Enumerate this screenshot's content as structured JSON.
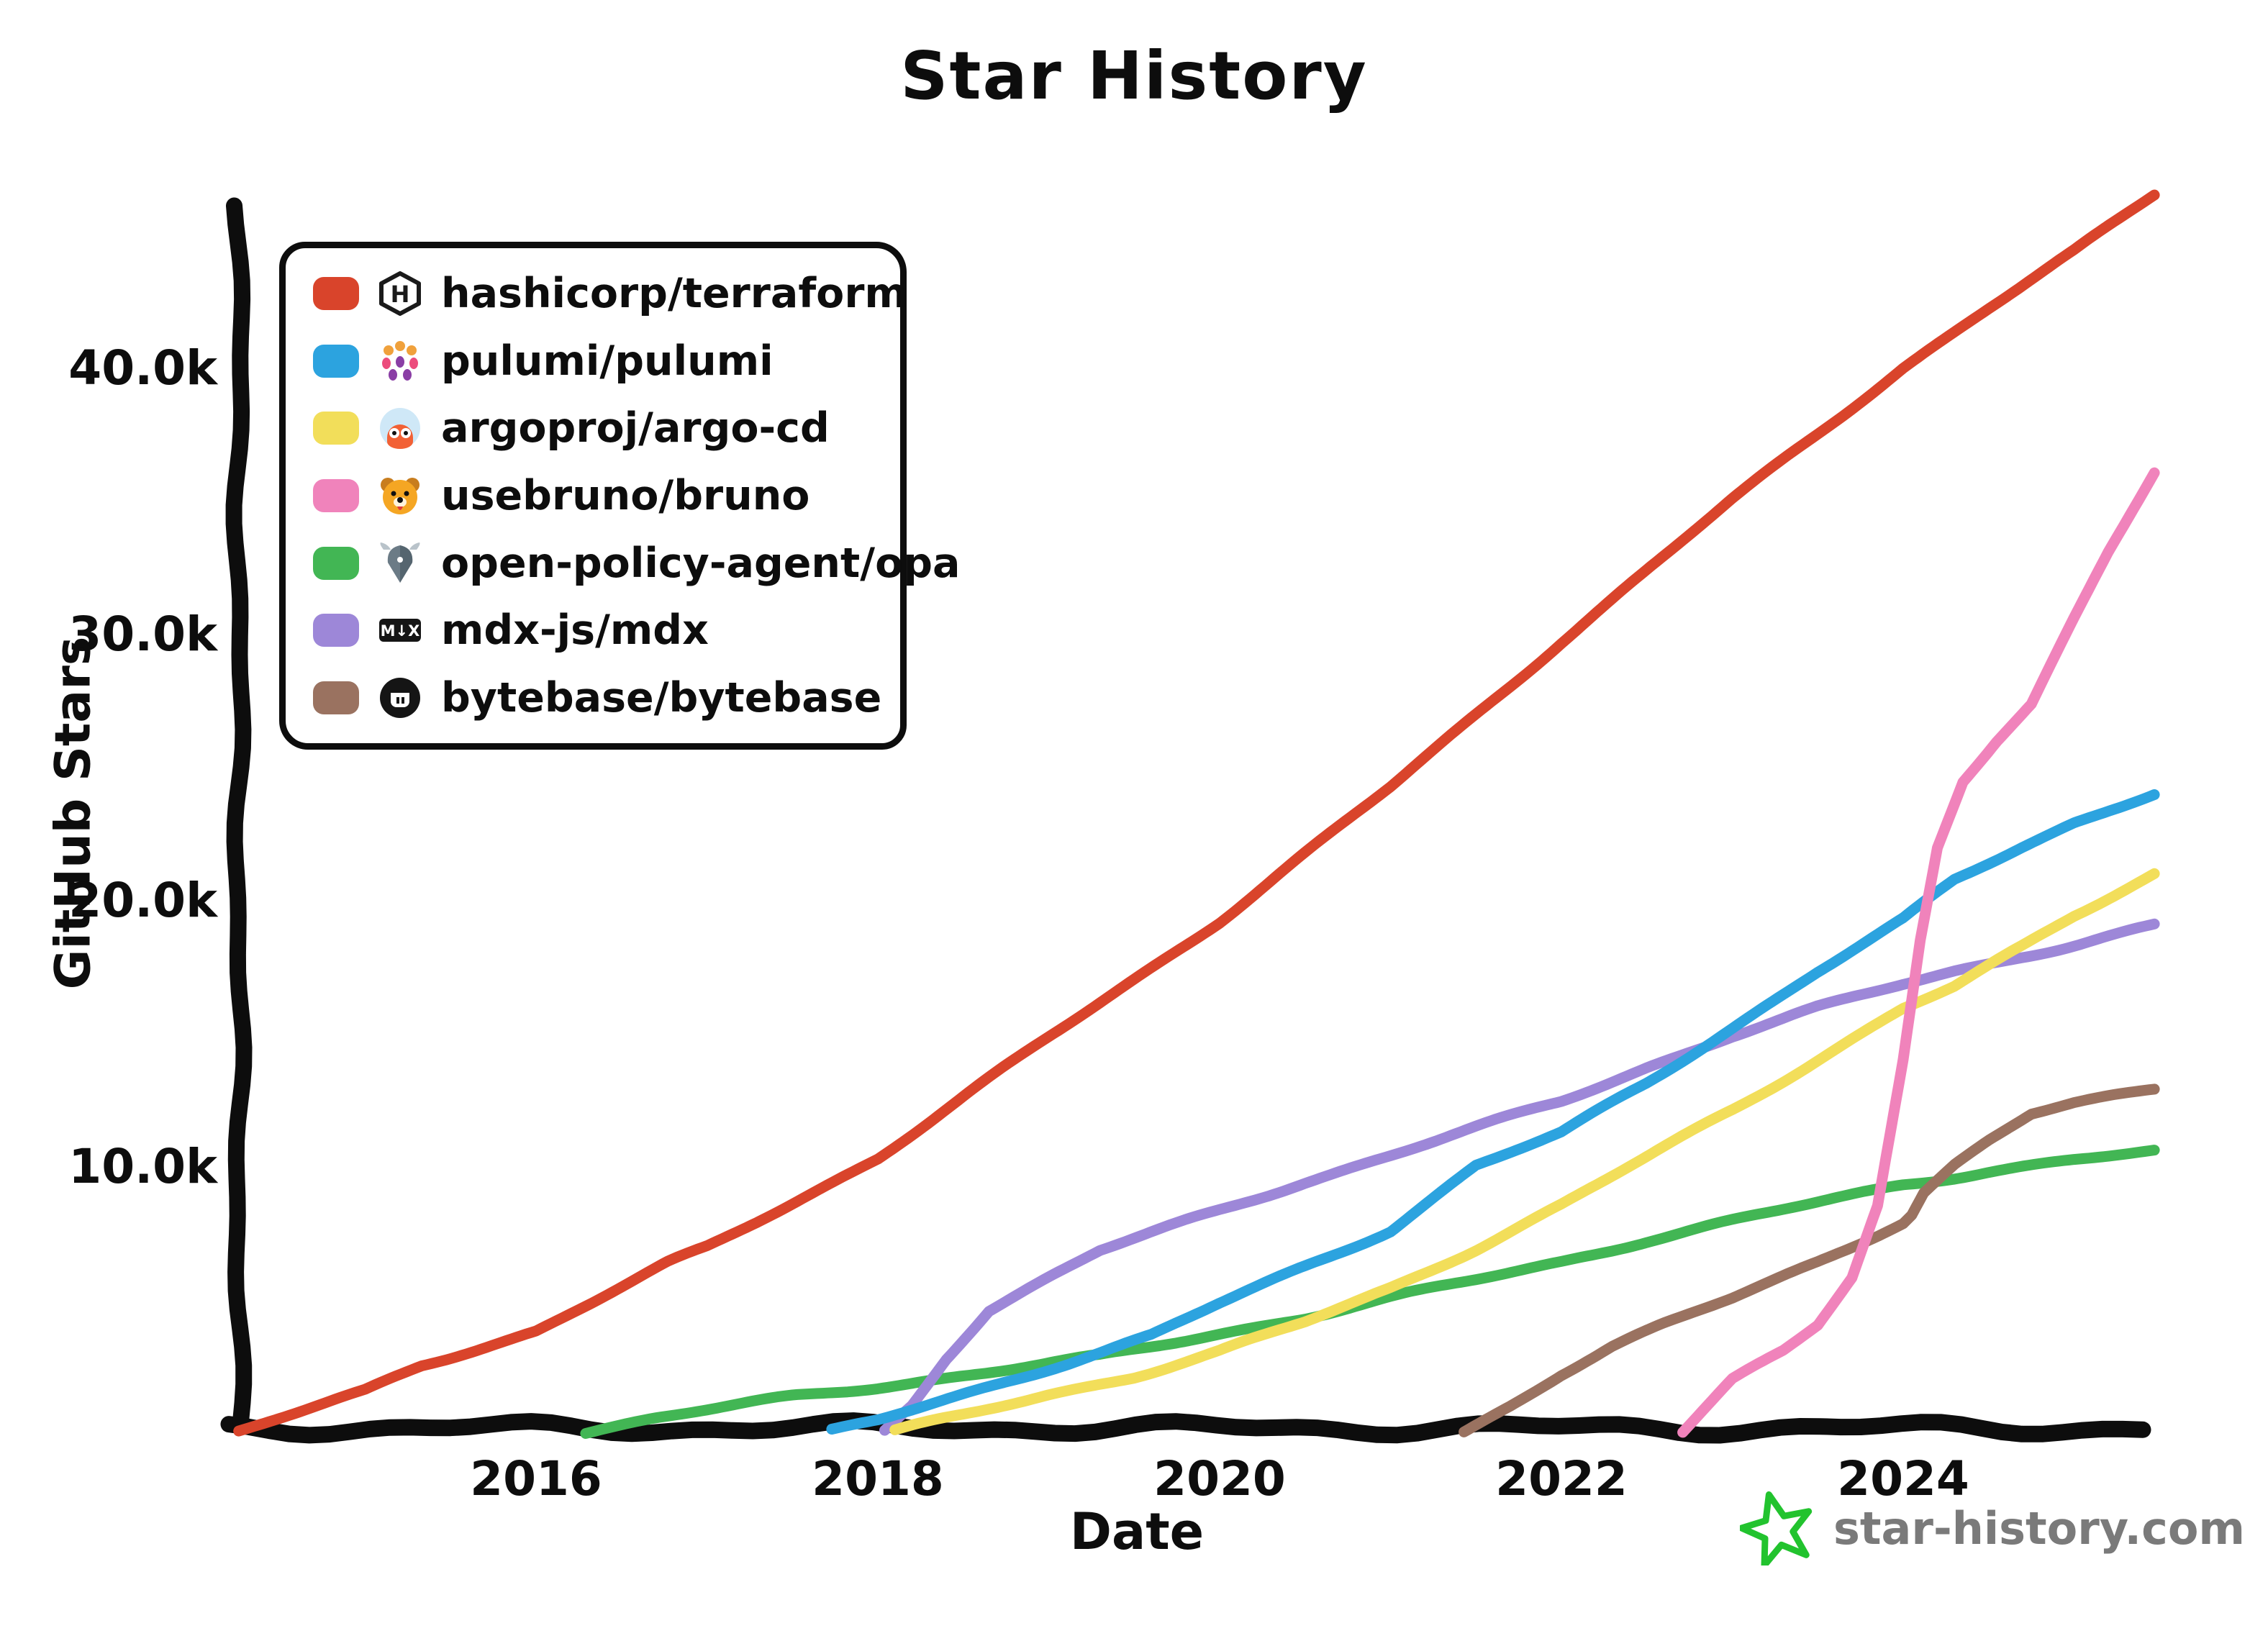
{
  "title": "Star History",
  "axes": {
    "x_label": "Date",
    "y_label": "GitHub Stars",
    "x_ticks": [
      {
        "label": "2016",
        "year": 2016
      },
      {
        "label": "2018",
        "year": 2018
      },
      {
        "label": "2020",
        "year": 2020
      },
      {
        "label": "2022",
        "year": 2022
      },
      {
        "label": "2024",
        "year": 2024
      }
    ],
    "y_ticks": [
      {
        "label": "10.0k",
        "value": 10
      },
      {
        "label": "20.0k",
        "value": 20
      },
      {
        "label": "30.0k",
        "value": 30
      },
      {
        "label": "40.0k",
        "value": 40
      }
    ]
  },
  "legend": {
    "items": [
      {
        "label": "hashicorp/terraform",
        "color": "#D9442B",
        "icon": "terraform-icon"
      },
      {
        "label": "pulumi/pulumi",
        "color": "#2CA3DF",
        "icon": "pulumi-icon"
      },
      {
        "label": "argoproj/argo-cd",
        "color": "#F2DE5A",
        "icon": "argocd-icon"
      },
      {
        "label": "usebruno/bruno",
        "color": "#F083BB",
        "icon": "bruno-dog-icon"
      },
      {
        "label": "open-policy-agent/opa",
        "color": "#42B654",
        "icon": "opa-helmet-icon"
      },
      {
        "label": "mdx-js/mdx",
        "color": "#9D87D8",
        "icon": "mdx-icon"
      },
      {
        "label": "bytebase/bytebase",
        "color": "#9A7260",
        "icon": "bytebase-icon"
      }
    ]
  },
  "logo": {
    "text": "star-history.com",
    "star_color": "#22C32E"
  },
  "colors": {
    "ink": "#0d0d0d",
    "logo_text": "#7a7a7a"
  },
  "chart_data": {
    "type": "line",
    "title": "Star History",
    "xlabel": "Date",
    "ylabel": "GitHub Stars",
    "x_unit": "year",
    "y_unit": "thousands_of_stars",
    "x_range": [
      2014.26,
      2025.47
    ],
    "y_range": [
      0,
      47
    ],
    "grid": false,
    "legend_position": "top-left",
    "series": [
      {
        "name": "hashicorp/terraform",
        "color": "#D9442B",
        "points": [
          [
            2014.26,
            0
          ],
          [
            2015,
            1.5
          ],
          [
            2015.33,
            2.5
          ],
          [
            2016,
            3.8
          ],
          [
            2016.77,
            6.3
          ],
          [
            2017,
            6.9
          ],
          [
            2018,
            10.3
          ],
          [
            2019,
            14.8
          ],
          [
            2020,
            19.2
          ],
          [
            2021,
            24.2
          ],
          [
            2022,
            29.7
          ],
          [
            2023,
            35.0
          ],
          [
            2024,
            40.0
          ],
          [
            2024.5,
            42.2
          ],
          [
            2025,
            44.3
          ],
          [
            2025.47,
            46.5
          ]
        ]
      },
      {
        "name": "pulumi/pulumi",
        "color": "#2CA3DF",
        "points": [
          [
            2017.73,
            0
          ],
          [
            2018,
            0.4
          ],
          [
            2018.5,
            1.4
          ],
          [
            2019,
            2.4
          ],
          [
            2019.6,
            3.6
          ],
          [
            2020,
            4.8
          ],
          [
            2020.5,
            6.2
          ],
          [
            2021,
            7.6
          ],
          [
            2021.5,
            10.0
          ],
          [
            2022,
            11.2
          ],
          [
            2022.5,
            13.1
          ],
          [
            2023,
            15.2
          ],
          [
            2023.5,
            17.3
          ],
          [
            2024,
            19.2
          ],
          [
            2024.3,
            20.7
          ],
          [
            2024.7,
            22.0
          ],
          [
            2025,
            22.9
          ],
          [
            2025.47,
            24.0
          ]
        ]
      },
      {
        "name": "argoproj/argo-cd",
        "color": "#F2DE5A",
        "points": [
          [
            2018.1,
            0
          ],
          [
            2018.5,
            0.6
          ],
          [
            2019,
            1.4
          ],
          [
            2019.5,
            2.1
          ],
          [
            2020,
            3.0
          ],
          [
            2020.5,
            4.1
          ],
          [
            2021,
            5.4
          ],
          [
            2021.5,
            6.9
          ],
          [
            2022,
            8.5
          ],
          [
            2022.5,
            10.3
          ],
          [
            2023,
            12.1
          ],
          [
            2023.5,
            14.0
          ],
          [
            2024,
            15.9
          ],
          [
            2024.3,
            16.7
          ],
          [
            2024.7,
            18.2
          ],
          [
            2025,
            19.4
          ],
          [
            2025.47,
            21.0
          ]
        ]
      },
      {
        "name": "usebruno/bruno",
        "color": "#F083BB",
        "points": [
          [
            2022.71,
            0
          ],
          [
            2023,
            1.9
          ],
          [
            2023.3,
            3.0
          ],
          [
            2023.5,
            4.0
          ],
          [
            2023.7,
            5.8
          ],
          [
            2023.85,
            8.5
          ],
          [
            2024.0,
            14.0
          ],
          [
            2024.1,
            18.5
          ],
          [
            2024.2,
            22.0
          ],
          [
            2024.35,
            24.5
          ],
          [
            2024.55,
            26.0
          ],
          [
            2024.75,
            27.3
          ],
          [
            2025,
            30.5
          ],
          [
            2025.2,
            33.0
          ],
          [
            2025.47,
            36.0
          ]
        ]
      },
      {
        "name": "open-policy-agent/opa",
        "color": "#42B654",
        "points": [
          [
            2016.29,
            0
          ],
          [
            2016.7,
            0.5
          ],
          [
            2017,
            0.8
          ],
          [
            2017.5,
            1.3
          ],
          [
            2018,
            1.7
          ],
          [
            2018.6,
            2.2
          ],
          [
            2019.3,
            2.8
          ],
          [
            2020,
            3.7
          ],
          [
            2020.5,
            4.3
          ],
          [
            2021,
            5.0
          ],
          [
            2021.5,
            5.7
          ],
          [
            2022,
            6.4
          ],
          [
            2022.5,
            7.2
          ],
          [
            2023,
            7.9
          ],
          [
            2023.5,
            8.6
          ],
          [
            2024,
            9.3
          ],
          [
            2024.5,
            9.8
          ],
          [
            2025,
            10.2
          ],
          [
            2025.47,
            10.5
          ]
        ]
      },
      {
        "name": "mdx-js/mdx",
        "color": "#9D87D8",
        "points": [
          [
            2018.04,
            0
          ],
          [
            2018.2,
            1.0
          ],
          [
            2018.4,
            2.8
          ],
          [
            2018.65,
            4.6
          ],
          [
            2019,
            5.8
          ],
          [
            2019.3,
            6.8
          ],
          [
            2020,
            8.3
          ],
          [
            2020.5,
            9.4
          ],
          [
            2021,
            10.4
          ],
          [
            2021.5,
            11.4
          ],
          [
            2022,
            12.4
          ],
          [
            2022.5,
            13.7
          ],
          [
            2023,
            14.9
          ],
          [
            2023.5,
            15.9
          ],
          [
            2024,
            16.8
          ],
          [
            2024.3,
            17.3
          ],
          [
            2024.7,
            17.9
          ],
          [
            2025,
            18.3
          ],
          [
            2025.47,
            19.0
          ]
        ]
      },
      {
        "name": "bytebase/bytebase",
        "color": "#9A7260",
        "points": [
          [
            2021.43,
            0
          ],
          [
            2021.7,
            1.0
          ],
          [
            2022,
            2.2
          ],
          [
            2022.3,
            3.2
          ],
          [
            2022.6,
            4.0
          ],
          [
            2023,
            5.0
          ],
          [
            2023.5,
            6.4
          ],
          [
            2024,
            7.9
          ],
          [
            2024.05,
            8.2
          ],
          [
            2024.12,
            9.0
          ],
          [
            2024.3,
            10.0
          ],
          [
            2024.5,
            10.9
          ],
          [
            2024.75,
            11.9
          ],
          [
            2025,
            12.3
          ],
          [
            2025.47,
            12.9
          ]
        ]
      }
    ]
  }
}
